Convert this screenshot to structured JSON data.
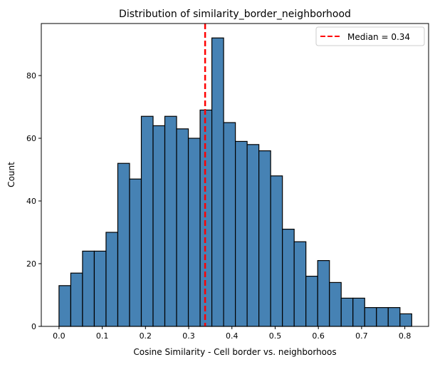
{
  "chart_data": {
    "type": "bar",
    "title": "Distribution of similarity_border_neighborhood",
    "xlabel": "Cosine Similarity - Cell border vs. neighborhoos",
    "ylabel": "Count",
    "bin_start": 0.0,
    "bin_end": 0.816,
    "values": [
      13,
      17,
      24,
      24,
      30,
      52,
      47,
      67,
      64,
      67,
      63,
      60,
      69,
      92,
      65,
      59,
      58,
      56,
      48,
      31,
      27,
      16,
      21,
      14,
      9,
      9,
      6,
      6,
      6,
      4
    ],
    "xlim": [
      -0.041,
      0.855
    ],
    "ylim": [
      0,
      96.6
    ],
    "xticks": [
      "0.0",
      "0.1",
      "0.2",
      "0.3",
      "0.4",
      "0.5",
      "0.6",
      "0.7",
      "0.8"
    ],
    "yticks": [
      "0",
      "20",
      "40",
      "60",
      "80"
    ],
    "bar_color": "#4682b4",
    "edge_color": "#000000",
    "median": {
      "value": 0.338,
      "color": "#ff0000",
      "style": "dashed"
    },
    "legend": {
      "label": "Median = 0.34",
      "placement": "top-right"
    },
    "grid": false
  }
}
